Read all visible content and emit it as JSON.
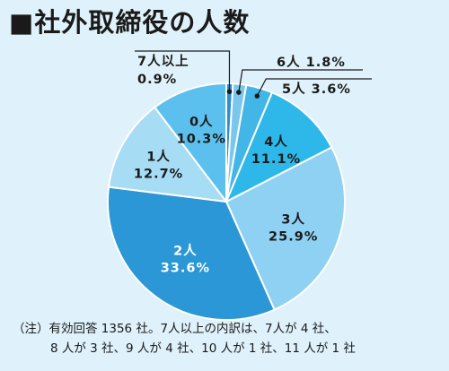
{
  "title": "■社外取締役の人数",
  "chart_data": {
    "type": "pie",
    "title": "■社外取締役の人数",
    "slices": [
      {
        "label": "7人以上",
        "value": 0.9,
        "value_text": "0.9%",
        "color": "#2e8fd0"
      },
      {
        "label": "6人",
        "value": 1.8,
        "value_text": "1.8%",
        "color": "#7ac7ee"
      },
      {
        "label": "5人",
        "value": 3.6,
        "value_text": "3.6%",
        "color": "#43b6e8"
      },
      {
        "label": "4人",
        "value": 11.1,
        "value_text": "11.1%",
        "color": "#2eb8ea"
      },
      {
        "label": "3人",
        "value": 25.9,
        "value_text": "25.9%",
        "color": "#8fd1f2"
      },
      {
        "label": "2人",
        "value": 33.6,
        "value_text": "33.6%",
        "color": "#2b97d6"
      },
      {
        "label": "1人",
        "value": 12.7,
        "value_text": "12.7%",
        "color": "#a7dcf5"
      },
      {
        "label": "0人",
        "value": 10.3,
        "value_text": "10.3%",
        "color": "#5cc0ee"
      }
    ],
    "start": "top, clockwise"
  },
  "note": {
    "line1": "（注）有効回答 1356 社。7人以上の内訳は、7人が 4 社、",
    "line2": "8 人が 3 社、9 人が 4 社、10 人が 1 社、11 人が 1 社"
  }
}
